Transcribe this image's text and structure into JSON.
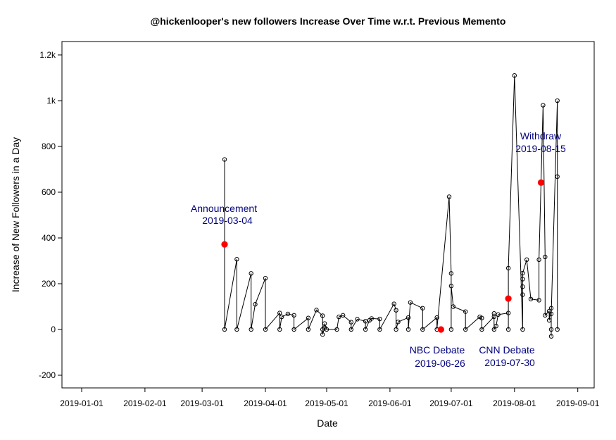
{
  "chart_data": {
    "type": "line",
    "title": "@hickenlooper's new followers Increase Over Time w.r.t. Previous Memento",
    "xlabel": "Date",
    "ylabel": "Increase of New Followers in a Day",
    "x_axis_type": "date",
    "xlim": [
      "2018-12-29",
      "2019-09-10"
    ],
    "ylim": [
      -250,
      1250
    ],
    "x_ticks": [
      "2019-01-01",
      "2019-02-01",
      "2019-03-01",
      "2019-04-01",
      "2019-05-01",
      "2019-06-01",
      "2019-07-01",
      "2019-08-01",
      "2019-09-01"
    ],
    "y_ticks": [
      {
        "value": -200,
        "label": "-200"
      },
      {
        "value": 0,
        "label": "0"
      },
      {
        "value": 200,
        "label": "200"
      },
      {
        "value": 400,
        "label": "400"
      },
      {
        "value": 600,
        "label": "600"
      },
      {
        "value": 800,
        "label": "800"
      },
      {
        "value": 1000,
        "label": "1k"
      },
      {
        "value": 1200,
        "label": "1.2k"
      }
    ],
    "grid": false,
    "line_color": "#000000",
    "highlight_color": "#ff0000",
    "annotation_color": "#00007f",
    "series": [
      {
        "points": [
          {
            "x": "2019-03-12",
            "y": 743
          },
          {
            "x": "2019-03-12",
            "y": 0
          },
          {
            "x": "2019-03-18",
            "y": 307
          },
          {
            "x": "2019-03-18",
            "y": 0
          },
          {
            "x": "2019-03-25",
            "y": 245
          },
          {
            "x": "2019-03-25",
            "y": 0
          },
          {
            "x": "2019-03-27",
            "y": 110
          },
          {
            "x": "2019-04-01",
            "y": 224
          },
          {
            "x": "2019-04-01",
            "y": 0
          },
          {
            "x": "2019-04-08",
            "y": 72
          },
          {
            "x": "2019-04-08",
            "y": 0
          },
          {
            "x": "2019-04-09",
            "y": 55
          },
          {
            "x": "2019-04-12",
            "y": 68
          },
          {
            "x": "2019-04-15",
            "y": 62
          },
          {
            "x": "2019-04-15",
            "y": 0
          },
          {
            "x": "2019-04-22",
            "y": 50
          },
          {
            "x": "2019-04-22",
            "y": 0
          },
          {
            "x": "2019-04-26",
            "y": 85
          },
          {
            "x": "2019-04-29",
            "y": 60
          },
          {
            "x": "2019-04-29",
            "y": 0
          },
          {
            "x": "2019-04-29",
            "y": -22
          },
          {
            "x": "2019-04-30",
            "y": 8
          },
          {
            "x": "2019-04-30",
            "y": 26
          },
          {
            "x": "2019-05-01",
            "y": 0
          },
          {
            "x": "2019-05-06",
            "y": 0
          },
          {
            "x": "2019-05-07",
            "y": 55
          },
          {
            "x": "2019-05-09",
            "y": 62
          },
          {
            "x": "2019-05-13",
            "y": 32
          },
          {
            "x": "2019-05-13",
            "y": 0
          },
          {
            "x": "2019-05-16",
            "y": 45
          },
          {
            "x": "2019-05-20",
            "y": 36
          },
          {
            "x": "2019-05-20",
            "y": 0
          },
          {
            "x": "2019-05-22",
            "y": 40
          },
          {
            "x": "2019-05-23",
            "y": 48
          },
          {
            "x": "2019-05-27",
            "y": 46
          },
          {
            "x": "2019-05-27",
            "y": 0
          },
          {
            "x": "2019-06-03",
            "y": 112
          },
          {
            "x": "2019-06-04",
            "y": 84
          },
          {
            "x": "2019-06-04",
            "y": 0
          },
          {
            "x": "2019-06-05",
            "y": 33
          },
          {
            "x": "2019-06-10",
            "y": 52
          },
          {
            "x": "2019-06-10",
            "y": 0
          },
          {
            "x": "2019-06-11",
            "y": 118
          },
          {
            "x": "2019-06-17",
            "y": 93
          },
          {
            "x": "2019-06-17",
            "y": 0
          },
          {
            "x": "2019-06-24",
            "y": 52
          },
          {
            "x": "2019-06-24",
            "y": 0
          },
          {
            "x": "2019-06-30",
            "y": 580
          },
          {
            "x": "2019-07-01",
            "y": 245
          },
          {
            "x": "2019-07-01",
            "y": 0
          },
          {
            "x": "2019-07-01",
            "y": 190
          },
          {
            "x": "2019-07-02",
            "y": 100
          },
          {
            "x": "2019-07-08",
            "y": 78
          },
          {
            "x": "2019-07-08",
            "y": 0
          },
          {
            "x": "2019-07-15",
            "y": 55
          },
          {
            "x": "2019-07-16",
            "y": 50
          },
          {
            "x": "2019-07-16",
            "y": 0
          },
          {
            "x": "2019-07-22",
            "y": 56
          },
          {
            "x": "2019-07-22",
            "y": 70
          },
          {
            "x": "2019-07-22",
            "y": 0
          },
          {
            "x": "2019-07-23",
            "y": 15
          },
          {
            "x": "2019-07-24",
            "y": 65
          },
          {
            "x": "2019-07-29",
            "y": 72
          },
          {
            "x": "2019-07-29",
            "y": 0
          },
          {
            "x": "2019-07-29",
            "y": 268
          },
          {
            "x": "2019-08-01",
            "y": 1110
          },
          {
            "x": "2019-08-05",
            "y": 0
          },
          {
            "x": "2019-08-05",
            "y": 152
          },
          {
            "x": "2019-08-05",
            "y": 187
          },
          {
            "x": "2019-08-05",
            "y": 220
          },
          {
            "x": "2019-08-05",
            "y": 246
          },
          {
            "x": "2019-08-07",
            "y": 305
          },
          {
            "x": "2019-08-09",
            "y": 133
          },
          {
            "x": "2019-08-13",
            "y": 128
          },
          {
            "x": "2019-08-13",
            "y": 305
          },
          {
            "x": "2019-08-15",
            "y": 980
          },
          {
            "x": "2019-08-16",
            "y": 317
          },
          {
            "x": "2019-08-16",
            "y": 62
          },
          {
            "x": "2019-08-18",
            "y": 80
          },
          {
            "x": "2019-08-18",
            "y": 40
          },
          {
            "x": "2019-08-19",
            "y": 93
          },
          {
            "x": "2019-08-19",
            "y": 0
          },
          {
            "x": "2019-08-19",
            "y": -30
          },
          {
            "x": "2019-08-19",
            "y": 68
          },
          {
            "x": "2019-08-22",
            "y": 1000
          },
          {
            "x": "2019-08-22",
            "y": 668
          },
          {
            "x": "2019-08-22",
            "y": 0
          }
        ]
      }
    ],
    "highlights": [
      {
        "x": "2019-03-12",
        "y": 372
      },
      {
        "x": "2019-06-26",
        "y": 0
      },
      {
        "x": "2019-07-29",
        "y": 135
      },
      {
        "x": "2019-08-14",
        "y": 642
      }
    ],
    "annotations": [
      {
        "line1": "Announcement",
        "line2": "2019-03-04"
      },
      {
        "line1": "NBC Debate",
        "line2": "2019-06-26"
      },
      {
        "line1": "CNN Debate",
        "line2": "2019-07-30"
      },
      {
        "line1": "Withdraw",
        "line2": "2019-08-15"
      }
    ]
  }
}
